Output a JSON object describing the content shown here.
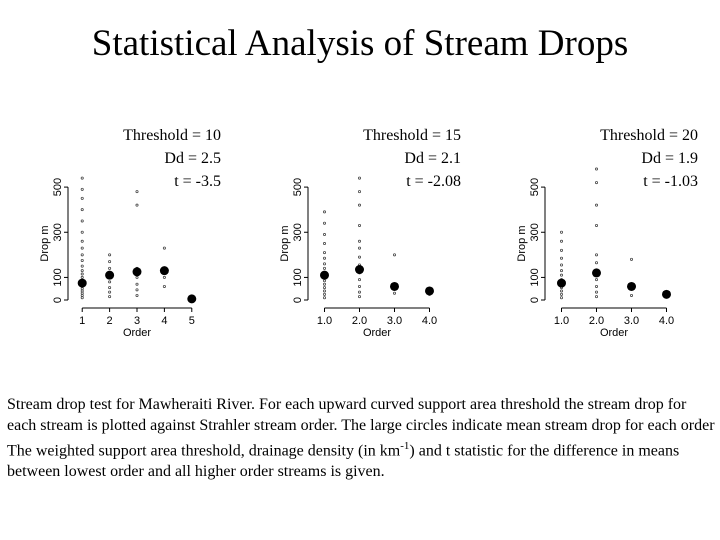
{
  "title": "Statistical Analysis of Stream Drops",
  "caption": {
    "part1": "Stream drop test for Mawheraiti River. For each upward curved support area threshold the stream drop for each stream is plotted against Strahler stream order. The large circles indicate mean stream drop for each order The weighted support area threshold, drainage density (in km",
    "superscript": "-1",
    "part2": ") and t statistic for the difference in means between lowest order and all higher order streams is given."
  },
  "chart_data": [
    {
      "type": "scatter",
      "xlabel": "Order",
      "ylabel": "Drop m",
      "xlim": [
        0.7,
        5.3
      ],
      "ylim": [
        0,
        620
      ],
      "xticks": [
        1,
        2,
        3,
        4,
        5
      ],
      "xtick_labels": [
        "1",
        "2",
        "3",
        "4",
        "5"
      ],
      "yticks": [
        0,
        100,
        300,
        500
      ],
      "ytick_labels": [
        "0",
        "100",
        "300",
        "500"
      ],
      "annotation": [
        "Threshold = 10",
        "Dd = 2.5",
        "t = -3.5"
      ],
      "means": [
        {
          "x": 1,
          "y": 75
        },
        {
          "x": 2,
          "y": 110
        },
        {
          "x": 3,
          "y": 125
        },
        {
          "x": 4,
          "y": 130
        },
        {
          "x": 5,
          "y": 5
        }
      ],
      "points": [
        {
          "x": 1,
          "y": 10
        },
        {
          "x": 1,
          "y": 20
        },
        {
          "x": 1,
          "y": 30
        },
        {
          "x": 1,
          "y": 40
        },
        {
          "x": 1,
          "y": 50
        },
        {
          "x": 1,
          "y": 60
        },
        {
          "x": 1,
          "y": 70
        },
        {
          "x": 1,
          "y": 85
        },
        {
          "x": 1,
          "y": 100
        },
        {
          "x": 1,
          "y": 115
        },
        {
          "x": 1,
          "y": 130
        },
        {
          "x": 1,
          "y": 150
        },
        {
          "x": 1,
          "y": 175
        },
        {
          "x": 1,
          "y": 200
        },
        {
          "x": 1,
          "y": 230
        },
        {
          "x": 1,
          "y": 260
        },
        {
          "x": 1,
          "y": 300
        },
        {
          "x": 1,
          "y": 350
        },
        {
          "x": 1,
          "y": 400
        },
        {
          "x": 1,
          "y": 450
        },
        {
          "x": 1,
          "y": 490
        },
        {
          "x": 1,
          "y": 540
        },
        {
          "x": 2,
          "y": 15
        },
        {
          "x": 2,
          "y": 35
        },
        {
          "x": 2,
          "y": 55
        },
        {
          "x": 2,
          "y": 80
        },
        {
          "x": 2,
          "y": 110
        },
        {
          "x": 2,
          "y": 140
        },
        {
          "x": 2,
          "y": 170
        },
        {
          "x": 2,
          "y": 200
        },
        {
          "x": 3,
          "y": 20
        },
        {
          "x": 3,
          "y": 45
        },
        {
          "x": 3,
          "y": 70
        },
        {
          "x": 3,
          "y": 100
        },
        {
          "x": 3,
          "y": 140
        },
        {
          "x": 3,
          "y": 420
        },
        {
          "x": 3,
          "y": 480
        },
        {
          "x": 4,
          "y": 60
        },
        {
          "x": 4,
          "y": 100
        },
        {
          "x": 4,
          "y": 230
        },
        {
          "x": 5,
          "y": 5
        }
      ]
    },
    {
      "type": "scatter",
      "xlabel": "Order",
      "ylabel": "Drop m",
      "xlim": [
        0.7,
        4.3
      ],
      "ylim": [
        0,
        620
      ],
      "xticks": [
        1,
        2,
        3,
        4
      ],
      "xtick_labels": [
        "1.0",
        "2.0",
        "3.0",
        "4.0"
      ],
      "yticks": [
        0,
        100,
        300,
        500
      ],
      "ytick_labels": [
        "0",
        "100",
        "300",
        "500"
      ],
      "annotation": [
        "Threshold = 15",
        "Dd = 2.1",
        "t = -2.08"
      ],
      "means": [
        {
          "x": 1,
          "y": 110
        },
        {
          "x": 2,
          "y": 135
        },
        {
          "x": 3,
          "y": 60
        },
        {
          "x": 4,
          "y": 40
        }
      ],
      "points": [
        {
          "x": 1,
          "y": 10
        },
        {
          "x": 1,
          "y": 25
        },
        {
          "x": 1,
          "y": 40
        },
        {
          "x": 1,
          "y": 55
        },
        {
          "x": 1,
          "y": 70
        },
        {
          "x": 1,
          "y": 85
        },
        {
          "x": 1,
          "y": 100
        },
        {
          "x": 1,
          "y": 120
        },
        {
          "x": 1,
          "y": 140
        },
        {
          "x": 1,
          "y": 160
        },
        {
          "x": 1,
          "y": 185
        },
        {
          "x": 1,
          "y": 210
        },
        {
          "x": 1,
          "y": 250
        },
        {
          "x": 1,
          "y": 290
        },
        {
          "x": 1,
          "y": 340
        },
        {
          "x": 1,
          "y": 390
        },
        {
          "x": 2,
          "y": 15
        },
        {
          "x": 2,
          "y": 35
        },
        {
          "x": 2,
          "y": 60
        },
        {
          "x": 2,
          "y": 90
        },
        {
          "x": 2,
          "y": 120
        },
        {
          "x": 2,
          "y": 155
        },
        {
          "x": 2,
          "y": 190
        },
        {
          "x": 2,
          "y": 230
        },
        {
          "x": 2,
          "y": 260
        },
        {
          "x": 2,
          "y": 330
        },
        {
          "x": 2,
          "y": 420
        },
        {
          "x": 2,
          "y": 480
        },
        {
          "x": 2,
          "y": 540
        },
        {
          "x": 3,
          "y": 30
        },
        {
          "x": 3,
          "y": 60
        },
        {
          "x": 3,
          "y": 200
        },
        {
          "x": 4,
          "y": 25
        }
      ]
    },
    {
      "type": "scatter",
      "xlabel": "Order",
      "ylabel": "Drop m",
      "xlim": [
        0.7,
        4.3
      ],
      "ylim": [
        0,
        620
      ],
      "xticks": [
        1,
        2,
        3,
        4
      ],
      "xtick_labels": [
        "1.0",
        "2.0",
        "3.0",
        "4.0"
      ],
      "yticks": [
        0,
        100,
        300,
        500
      ],
      "ytick_labels": [
        "0",
        "100",
        "300",
        "500"
      ],
      "annotation": [
        "Threshold = 20",
        "Dd = 1.9",
        "t = -1.03"
      ],
      "means": [
        {
          "x": 1,
          "y": 75
        },
        {
          "x": 2,
          "y": 120
        },
        {
          "x": 3,
          "y": 60
        },
        {
          "x": 4,
          "y": 25
        }
      ],
      "points": [
        {
          "x": 1,
          "y": 10
        },
        {
          "x": 1,
          "y": 25
        },
        {
          "x": 1,
          "y": 40
        },
        {
          "x": 1,
          "y": 55
        },
        {
          "x": 1,
          "y": 70
        },
        {
          "x": 1,
          "y": 90
        },
        {
          "x": 1,
          "y": 110
        },
        {
          "x": 1,
          "y": 130
        },
        {
          "x": 1,
          "y": 155
        },
        {
          "x": 1,
          "y": 185
        },
        {
          "x": 1,
          "y": 220
        },
        {
          "x": 1,
          "y": 260
        },
        {
          "x": 1,
          "y": 300
        },
        {
          "x": 2,
          "y": 15
        },
        {
          "x": 2,
          "y": 35
        },
        {
          "x": 2,
          "y": 60
        },
        {
          "x": 2,
          "y": 90
        },
        {
          "x": 2,
          "y": 125
        },
        {
          "x": 2,
          "y": 165
        },
        {
          "x": 2,
          "y": 200
        },
        {
          "x": 2,
          "y": 330
        },
        {
          "x": 2,
          "y": 420
        },
        {
          "x": 2,
          "y": 520
        },
        {
          "x": 2,
          "y": 580
        },
        {
          "x": 3,
          "y": 20
        },
        {
          "x": 3,
          "y": 180
        },
        {
          "x": 4,
          "y": 25
        }
      ]
    }
  ]
}
